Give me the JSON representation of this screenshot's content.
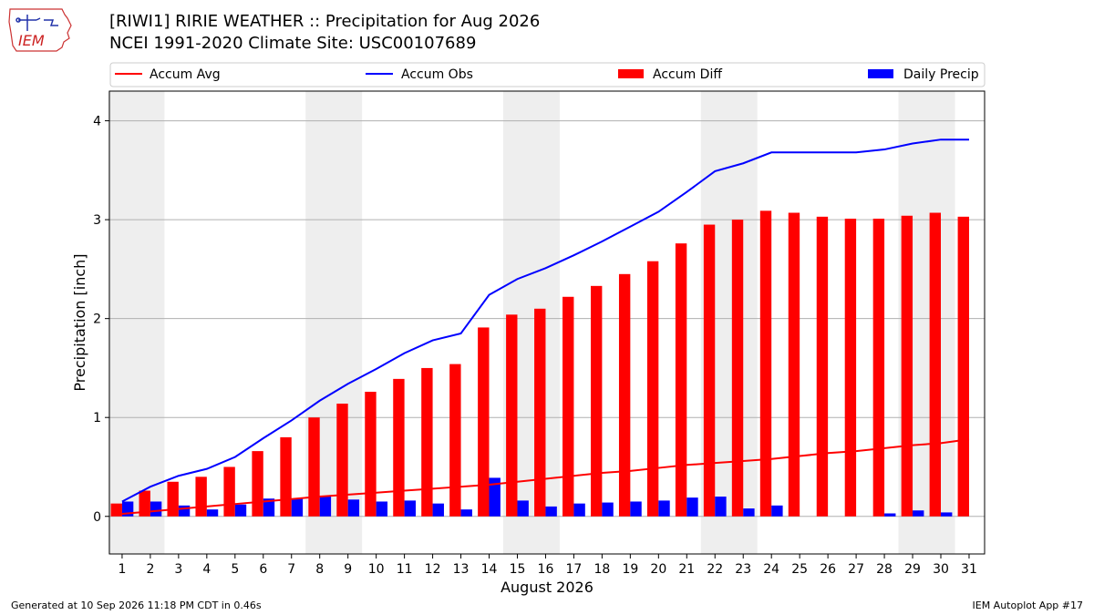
{
  "header": {
    "title": "[RIWI1] RIRIE WEATHER :: Precipitation for Aug 2026",
    "subtitle": "NCEI 1991-2020 Climate Site: USC00107689",
    "logo_text": "IEM"
  },
  "footer": {
    "generated": "Generated at 10 Sep 2026 11:18 PM CDT in 0.46s",
    "app": "IEM Autoplot App #17"
  },
  "colors": {
    "accum_avg": "#ff0000",
    "accum_obs": "#0000ff",
    "accum_diff": "#ff0000",
    "daily_precip": "#0000ff",
    "weekend_shade": "#eeeeee",
    "grid": "#b0b0b0"
  },
  "chart_data": {
    "type": "bar",
    "xlabel": "August 2026",
    "ylabel": "Precipitation [inch]",
    "ylim": [
      -0.38,
      4.3
    ],
    "yticks": [
      0,
      1,
      2,
      3,
      4
    ],
    "grid": true,
    "legend_position": "top",
    "categories": [
      "1",
      "2",
      "3",
      "4",
      "5",
      "6",
      "7",
      "8",
      "9",
      "10",
      "11",
      "12",
      "13",
      "14",
      "15",
      "16",
      "17",
      "18",
      "19",
      "20",
      "21",
      "22",
      "23",
      "24",
      "25",
      "26",
      "27",
      "28",
      "29",
      "30",
      "31"
    ],
    "shaded_day_ranges": [
      [
        1,
        2
      ],
      [
        8,
        9
      ],
      [
        15,
        16
      ],
      [
        22,
        23
      ],
      [
        29,
        30
      ]
    ],
    "series": [
      {
        "name": "Accum Avg",
        "kind": "line",
        "values": [
          0.025,
          0.05,
          0.075,
          0.1,
          0.125,
          0.15,
          0.175,
          0.2,
          0.22,
          0.24,
          0.26,
          0.28,
          0.3,
          0.32,
          0.35,
          0.38,
          0.41,
          0.44,
          0.46,
          0.49,
          0.52,
          0.54,
          0.56,
          0.58,
          0.61,
          0.64,
          0.66,
          0.69,
          0.72,
          0.74,
          0.78
        ]
      },
      {
        "name": "Accum Obs",
        "kind": "line",
        "values": [
          0.15,
          0.3,
          0.41,
          0.48,
          0.6,
          0.79,
          0.97,
          1.17,
          1.34,
          1.49,
          1.65,
          1.78,
          1.85,
          2.24,
          2.4,
          2.51,
          2.64,
          2.78,
          2.93,
          3.08,
          3.28,
          3.49,
          3.57,
          3.68,
          3.68,
          3.68,
          3.68,
          3.71,
          3.77,
          3.81,
          3.81
        ]
      },
      {
        "name": "Accum Diff",
        "kind": "bar",
        "values": [
          0.13,
          0.26,
          0.35,
          0.4,
          0.5,
          0.66,
          0.8,
          1.0,
          1.14,
          1.26,
          1.39,
          1.5,
          1.54,
          1.91,
          2.04,
          2.1,
          2.22,
          2.33,
          2.45,
          2.58,
          2.76,
          2.95,
          3.0,
          3.09,
          3.07,
          3.03,
          3.01,
          3.01,
          3.04,
          3.07,
          3.03
        ]
      },
      {
        "name": "Daily Precip",
        "kind": "bar",
        "values": [
          0.15,
          0.15,
          0.11,
          0.07,
          0.12,
          0.18,
          0.18,
          0.2,
          0.17,
          0.15,
          0.16,
          0.13,
          0.07,
          0.39,
          0.16,
          0.1,
          0.13,
          0.14,
          0.15,
          0.16,
          0.19,
          0.2,
          0.08,
          0.11,
          0.0,
          0.0,
          0.0,
          0.03,
          0.06,
          0.04,
          0.0
        ]
      }
    ]
  }
}
